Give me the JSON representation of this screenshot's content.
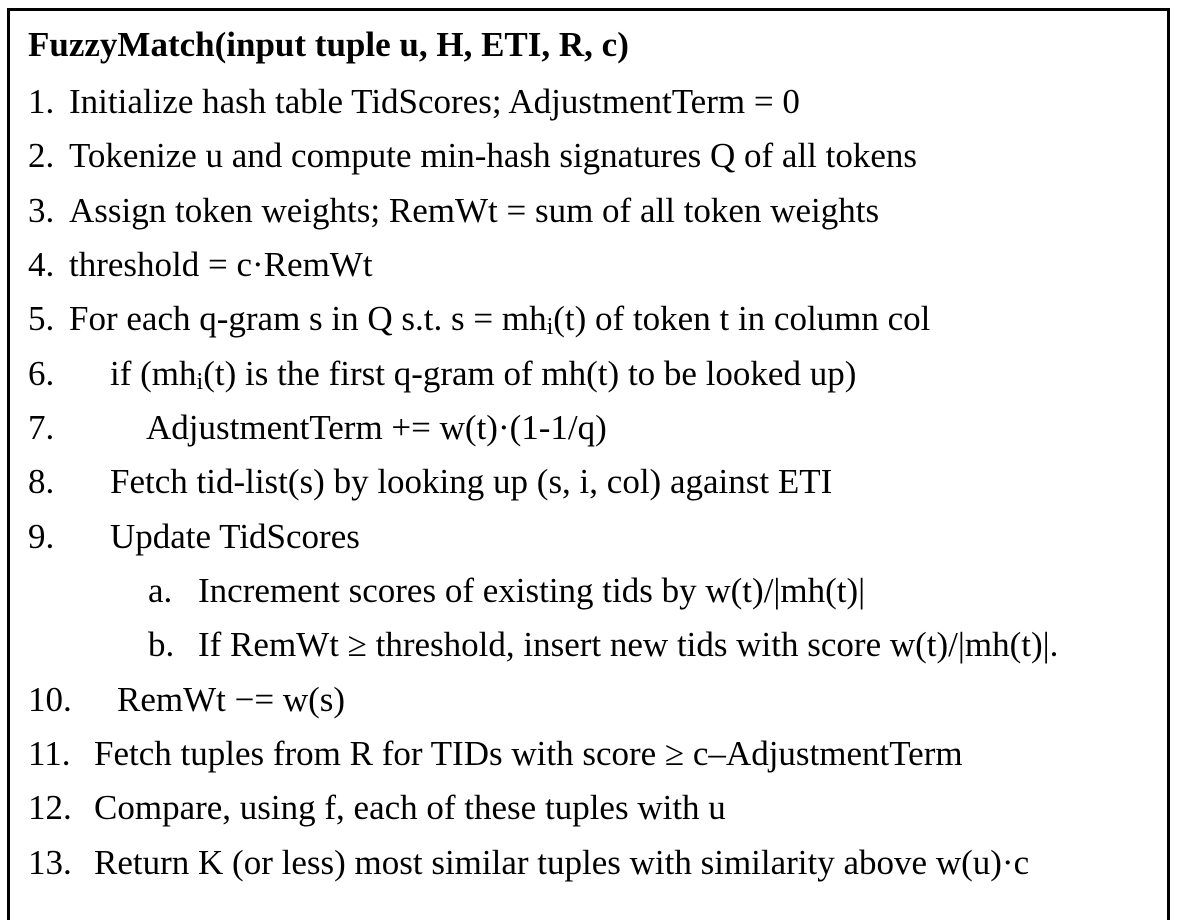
{
  "algorithm": {
    "title": "FuzzyMatch(input tuple u, H, ETI, R, c)",
    "lines": [
      {
        "num": "1.",
        "text": "Initialize hash table TidScores; AdjustmentTerm = 0"
      },
      {
        "num": "2.",
        "text": "Tokenize u and compute min-hash signatures Q of all tokens"
      },
      {
        "num": "3.",
        "text": "Assign token weights; RemWt = sum of all token weights"
      },
      {
        "num": "4.",
        "text": "threshold = c·RemWt"
      },
      {
        "num": "5.",
        "text_a": "For each q-gram s in Q s.t. s = mh",
        "sub": "i",
        "text_b": "(t) of token t in column col"
      },
      {
        "num": "6.",
        "text_a": "if (mh",
        "sub": "i",
        "text_b": "(t) is the first q-gram of mh(t) to be looked up)"
      },
      {
        "num": "7.",
        "text": "AdjustmentTerm += w(t)·(1-1/q)"
      },
      {
        "num": "8.",
        "text": "Fetch tid-list(s) by looking up (s, i, col) against ETI"
      },
      {
        "num": "9.",
        "text": "Update TidScores"
      },
      {
        "num": "a.",
        "text": "Increment scores of existing tids by w(t)/|mh(t)|"
      },
      {
        "num": "b.",
        "text": "If RemWt ≥ threshold, insert new tids with score w(t)/|mh(t)|."
      },
      {
        "num": "10.",
        "text": "RemWt −= w(s)"
      },
      {
        "num": "11.",
        "text": "Fetch tuples from R for TIDs with score ≥ c–AdjustmentTerm"
      },
      {
        "num": "12.",
        "text": "Compare, using f, each of these tuples with u"
      },
      {
        "num": "13.",
        "text": "Return K (or less) most similar tuples with similarity above w(u)·c"
      }
    ]
  }
}
